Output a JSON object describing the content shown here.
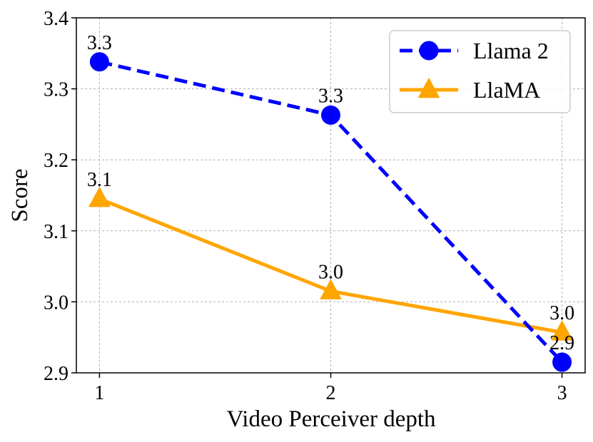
{
  "chart_data": {
    "type": "line",
    "title": "",
    "xlabel": "Video Perceiver depth",
    "ylabel": "Score",
    "x": [
      1,
      2,
      3
    ],
    "xticks": [
      "1",
      "2",
      "3"
    ],
    "xlim": [
      0.9,
      3.1
    ],
    "ylim": [
      2.9,
      3.4
    ],
    "yticks": [
      "2.9",
      "3.0",
      "3.1",
      "3.2",
      "3.3",
      "3.4"
    ],
    "grid": true,
    "legend_position": "top-right",
    "series": [
      {
        "name": "Llama 2",
        "values": [
          3.338,
          3.263,
          2.915
        ],
        "labels": [
          "3.3",
          "3.3",
          "2.9"
        ],
        "color": "#0000ff",
        "line_style": "dashed",
        "marker": "circle"
      },
      {
        "name": "LlaMA",
        "values": [
          3.145,
          3.015,
          2.957
        ],
        "labels": [
          "3.1",
          "3.0",
          "3.0"
        ],
        "color": "#ffa500",
        "line_style": "solid",
        "marker": "triangle"
      }
    ]
  }
}
